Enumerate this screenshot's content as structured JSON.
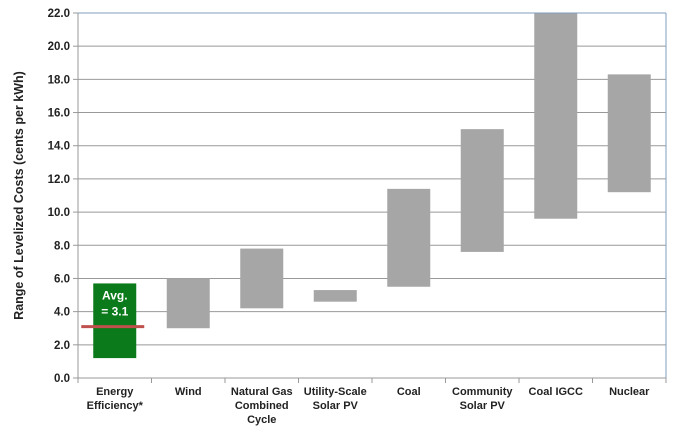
{
  "chart_data": {
    "type": "bar",
    "subtype": "floating-range",
    "ylabel": "Range of Levelized Costs (cents per kWh)",
    "ylim": [
      0,
      22
    ],
    "ytick_step": 2,
    "ytick_labels": [
      "0.0",
      "2.0",
      "4.0",
      "6.0",
      "8.0",
      "10.0",
      "12.0",
      "14.0",
      "16.0",
      "18.0",
      "20.0",
      "22.0"
    ],
    "grid": true,
    "categories": [
      [
        "Energy",
        "Efficiency*"
      ],
      [
        "Wind"
      ],
      [
        "Natural Gas",
        "Combined",
        "Cycle"
      ],
      [
        "Utility-Scale",
        "Solar PV"
      ],
      [
        "Coal"
      ],
      [
        "Community",
        "Solar PV"
      ],
      [
        "Coal IGCC"
      ],
      [
        "Nuclear"
      ]
    ],
    "ranges": [
      [
        1.2,
        5.7
      ],
      [
        3.0,
        6.0
      ],
      [
        4.2,
        7.8
      ],
      [
        4.6,
        5.3
      ],
      [
        5.5,
        11.4
      ],
      [
        7.6,
        15.0
      ],
      [
        9.6,
        22.0
      ],
      [
        11.2,
        18.3
      ]
    ],
    "bar_colors": [
      "#0b7a1a",
      "#a6a6a6",
      "#a6a6a6",
      "#a6a6a6",
      "#a6a6a6",
      "#a6a6a6",
      "#a6a6a6",
      "#a6a6a6"
    ],
    "average_marker": {
      "category_index": 0,
      "value": 3.1,
      "color": "#c0504d",
      "label_lines": [
        "Avg.",
        "= 3.1"
      ]
    },
    "colors": {
      "grid": "#999999",
      "axis": "#7f9fbf",
      "bar": "#a6a6a6",
      "efficiency": "#0b7a1a"
    }
  }
}
